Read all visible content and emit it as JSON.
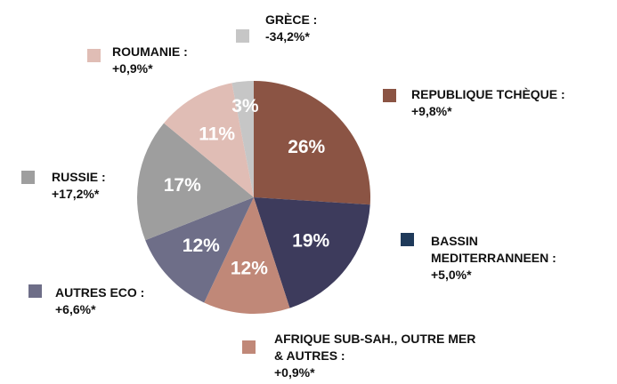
{
  "chart_data": {
    "type": "pie",
    "categories": [
      "REPUBLIQUE TCHÈQUE :",
      "BASSIN\nMEDITERRANNEEN :",
      "AFRIQUE SUB-SAH., OUTRE MER\n& AUTRES :",
      "AUTRES ECO :",
      "RUSSIE :",
      "ROUMANIE :",
      "GRÈCE :"
    ],
    "changes": [
      "+9,8%*",
      "+5,0%*",
      "+0,9%*",
      "+6,6%*",
      "+17,2%*",
      "+0,9%*",
      "-34,2%*"
    ],
    "values": [
      26,
      19,
      12,
      12,
      17,
      11,
      3
    ],
    "value_labels": [
      "26%",
      "19%",
      "12%",
      "12%",
      "17%",
      "11%",
      "3%"
    ],
    "colors": [
      "#8b5444",
      "#3d3b5c",
      "#c08878",
      "#6e6e88",
      "#9e9e9e",
      "#e0bdb5",
      "#c6c6c6"
    ],
    "legend_colors": [
      "#8b5444",
      "#1f3a5a",
      "#c08878",
      "#6e6e88",
      "#9e9e9e",
      "#e0bdb5",
      "#c6c6c6"
    ]
  }
}
